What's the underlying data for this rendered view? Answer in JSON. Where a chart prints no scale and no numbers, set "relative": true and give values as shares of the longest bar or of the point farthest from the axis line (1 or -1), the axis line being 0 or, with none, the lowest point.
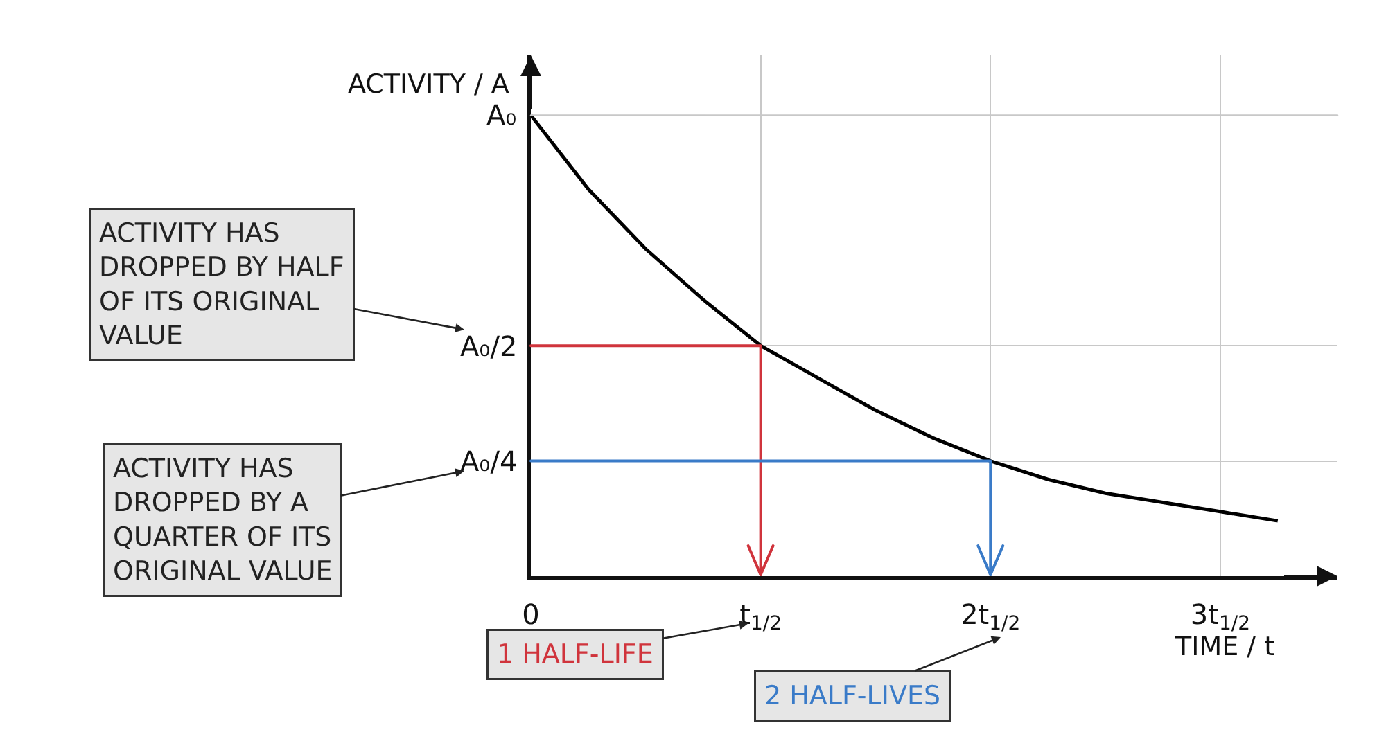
{
  "chart_data": {
    "type": "line",
    "relative": true,
    "xlabel": "TIME / t",
    "ylabel": "ACTIVITY / A",
    "grid": true,
    "marker": "none",
    "line_style": "solid",
    "categories": [
      "0",
      null,
      null,
      null,
      "t$_{1/2}$",
      null,
      null,
      null,
      "2t$_{1/2}$",
      null,
      null,
      null,
      "3t$_{1/2}$",
      null
    ],
    "series": [
      {
        "color": "#000000",
        "values": [
          1,
          0.84,
          0.71,
          0.6,
          0.5,
          0.43,
          0.36,
          0.3,
          0.25,
          0.21,
          0.18,
          0.16,
          0.14,
          0.12
        ]
      }
    ],
    "ref_lines": [
      {
        "axis": "y",
        "value": 1,
        "label": "A₀"
      },
      {
        "axis": "y",
        "value": 0.5,
        "label": "A₀/2",
        "color": "#d0343c"
      },
      {
        "axis": "y",
        "value": 0.25,
        "label": "A₀/4",
        "color": "#3a7bc8"
      }
    ],
    "annotations": [
      "ACTIVITY HAS DROPPED BY HALF OF ITS ORIGINAL VALUE",
      "ACTIVITY HAS DROPPED BY A QUARTER OF ITS ORIGINAL VALUE",
      "1 HALF-LIFE",
      "2 HALF-LIVES"
    ]
  }
}
